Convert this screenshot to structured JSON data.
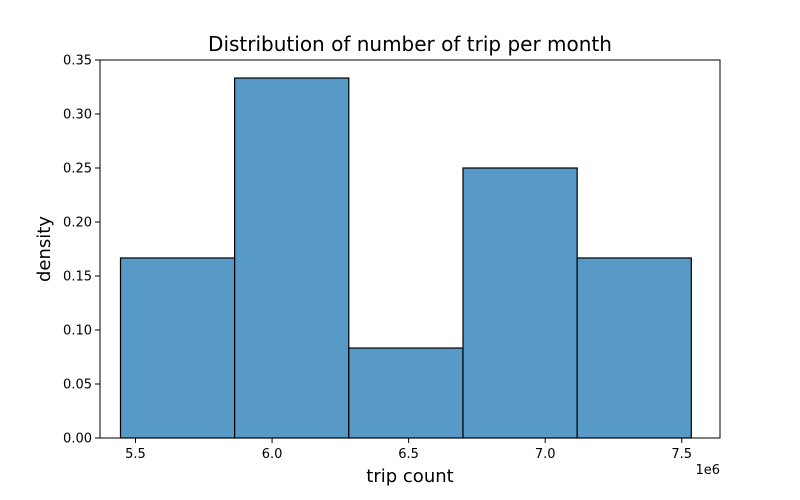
{
  "chart_data": {
    "type": "bar",
    "title": "Distribution of number of trip per month",
    "xlabel": "trip count",
    "ylabel": "density",
    "x_offset_label": "1e6",
    "xlim": [
      5.37,
      7.64
    ],
    "ylim": [
      0,
      0.35
    ],
    "grid": false,
    "legend": "none",
    "bar_color": "#5799c7",
    "edge_color": "#000000",
    "bins": [
      {
        "x0": 5.445,
        "x1": 5.863,
        "value": 0.1667
      },
      {
        "x0": 5.863,
        "x1": 6.281,
        "value": 0.3333
      },
      {
        "x0": 6.281,
        "x1": 6.699,
        "value": 0.0833
      },
      {
        "x0": 6.699,
        "x1": 7.117,
        "value": 0.25
      },
      {
        "x0": 7.117,
        "x1": 7.535,
        "value": 0.1667
      }
    ],
    "x_ticks": [
      {
        "value": 5.5,
        "label": "5.5"
      },
      {
        "value": 6.0,
        "label": "6.0"
      },
      {
        "value": 6.5,
        "label": "6.5"
      },
      {
        "value": 7.0,
        "label": "7.0"
      },
      {
        "value": 7.5,
        "label": "7.5"
      }
    ],
    "y_ticks": [
      {
        "value": 0,
        "label": "0.00"
      },
      {
        "value": 0.05,
        "label": "0.05"
      },
      {
        "value": 0.1,
        "label": "0.10"
      },
      {
        "value": 0.15,
        "label": "0.15"
      },
      {
        "value": 0.2,
        "label": "0.20"
      },
      {
        "value": 0.25,
        "label": "0.25"
      },
      {
        "value": 0.3,
        "label": "0.30"
      },
      {
        "value": 0.35,
        "label": "0.35"
      }
    ]
  }
}
